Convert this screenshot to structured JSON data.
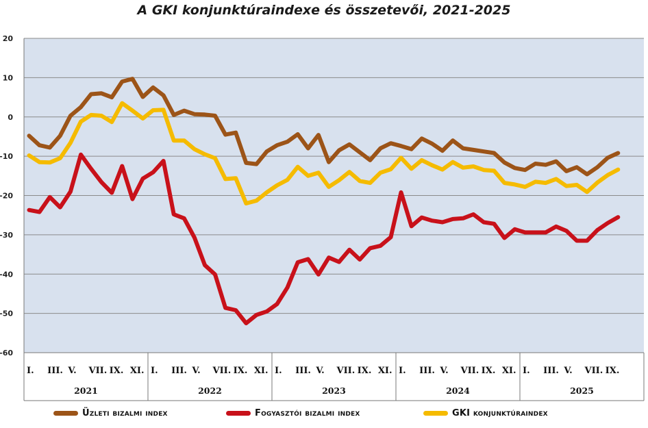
{
  "chart_data": {
    "type": "line",
    "title": "A GKI konjunktúraindexe és összetevői, 2021-2025",
    "ylim": [
      -60,
      20
    ],
    "yticks": [
      "20",
      "10",
      "0",
      "-10",
      "-20",
      "-30",
      "-40",
      "-50",
      "-60"
    ],
    "grid": true,
    "legend_position": "bottom",
    "month_labels": [
      "I.",
      "III.",
      "V.",
      "VII.",
      "IX.",
      "XI."
    ],
    "years": [
      "2021",
      "2022",
      "2023",
      "2024",
      "2025"
    ],
    "series": [
      {
        "name": "Üzleti bizalmi index",
        "color": "#9c5418",
        "values": [
          -4.8,
          -7.2,
          -7.8,
          -4.8,
          0.3,
          2.5,
          5.8,
          6.0,
          5.0,
          9.0,
          9.7,
          5.1,
          7.5,
          5.5,
          0.5,
          1.6,
          0.7,
          0.6,
          0.3,
          -4.5,
          -4.0,
          -11.7,
          -12.0,
          -8.8,
          -7.2,
          -6.3,
          -4.4,
          -8.0,
          -4.6,
          -11.5,
          -8.5,
          -7.0,
          -9.0,
          -11.0,
          -8.0,
          -6.7,
          -7.4,
          -8.2,
          -5.5,
          -6.8,
          -8.6,
          -6.0,
          -8.0,
          -8.4,
          -8.8,
          -9.2,
          -11.6,
          -13.0,
          -13.5,
          -11.9,
          -12.2,
          -11.3,
          -13.8,
          -12.8,
          -14.6,
          -12.8,
          -10.4,
          -9.2
        ]
      },
      {
        "name": "Fogyasztói bizalmi index",
        "color": "#c8111a",
        "values": [
          -23.7,
          -24.2,
          -20.4,
          -23.0,
          -19.0,
          -9.6,
          -13.2,
          -16.6,
          -19.3,
          -12.5,
          -20.9,
          -15.7,
          -14.1,
          -11.2,
          -24.8,
          -25.8,
          -30.7,
          -37.7,
          -40.1,
          -48.6,
          -49.2,
          -52.5,
          -50.4,
          -49.5,
          -47.6,
          -43.4,
          -37.0,
          -36.2,
          -40.1,
          -35.8,
          -36.9,
          -33.8,
          -36.3,
          -33.4,
          -32.8,
          -30.6,
          -19.2,
          -27.8,
          -25.6,
          -26.4,
          -26.8,
          -26.0,
          -25.8,
          -24.8,
          -26.8,
          -27.2,
          -30.8,
          -28.6,
          -29.4,
          -29.4,
          -29.4,
          -27.9,
          -29.0,
          -31.5,
          -31.5,
          -28.8,
          -27.0,
          -25.5
        ]
      },
      {
        "name": "GKI konjunktúraindex",
        "color": "#f5bb00",
        "values": [
          -9.8,
          -11.5,
          -11.6,
          -10.5,
          -6.6,
          -1.2,
          0.5,
          0.3,
          -1.3,
          3.5,
          1.6,
          -0.4,
          1.7,
          1.8,
          -6.0,
          -6.0,
          -8.2,
          -9.5,
          -10.5,
          -15.8,
          -15.6,
          -22.0,
          -21.3,
          -19.2,
          -17.4,
          -16.0,
          -12.7,
          -15.0,
          -14.2,
          -17.8,
          -16.1,
          -14.0,
          -16.3,
          -16.8,
          -14.2,
          -13.3,
          -10.4,
          -13.2,
          -11.0,
          -12.3,
          -13.4,
          -11.5,
          -12.9,
          -12.6,
          -13.5,
          -13.7,
          -16.8,
          -17.2,
          -17.8,
          -16.5,
          -16.8,
          -15.8,
          -17.6,
          -17.3,
          -19.1,
          -16.7,
          -14.8,
          -13.4
        ]
      }
    ]
  }
}
